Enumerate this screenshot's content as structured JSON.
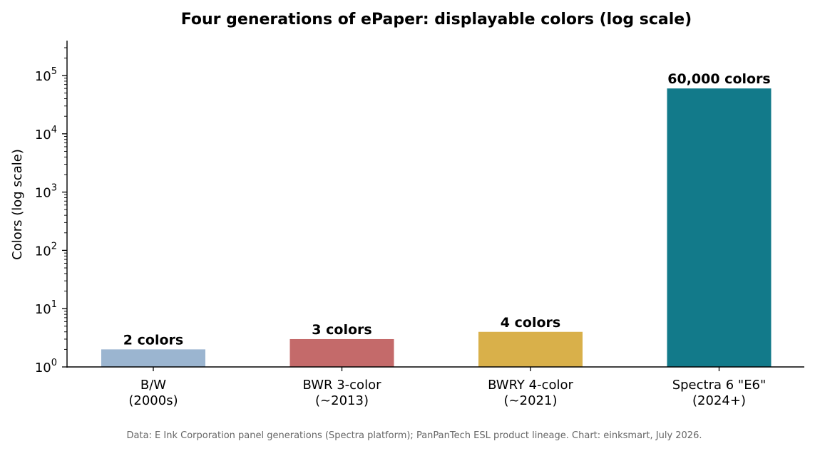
{
  "chart_data": {
    "type": "bar",
    "title": "Four generations of ePaper: displayable colors (log scale)",
    "ylabel": "Colors (log scale)",
    "xlabel": "",
    "yscale": "log",
    "ylim": [
      1,
      400000
    ],
    "yticks": [
      {
        "value": 1,
        "base": "10",
        "exp": "0"
      },
      {
        "value": 10,
        "base": "10",
        "exp": "1"
      },
      {
        "value": 100,
        "base": "10",
        "exp": "2"
      },
      {
        "value": 1000,
        "base": "10",
        "exp": "3"
      },
      {
        "value": 10000,
        "base": "10",
        "exp": "4"
      },
      {
        "value": 100000,
        "base": "10",
        "exp": "5"
      }
    ],
    "categories": [
      [
        "B/W",
        "(2000s)"
      ],
      [
        "BWR 3-color",
        "(~2013)"
      ],
      [
        "BWRY 4-color",
        "(~2021)"
      ],
      [
        "Spectra 6 \"E6\"",
        "(2024+)"
      ]
    ],
    "values": [
      2,
      3,
      4,
      60000
    ],
    "data_labels": [
      "2 colors",
      "3 colors",
      "4 colors",
      "60,000 colors"
    ],
    "colors": [
      "#9bb5d0",
      "#c46a6a",
      "#d9b04a",
      "#127a8a"
    ],
    "grid": false,
    "spines": "left-bottom"
  },
  "footnote": "Data: E Ink Corporation panel generations (Spectra platform); PanPanTech ESL product lineage. Chart: einksmart, July 2026."
}
